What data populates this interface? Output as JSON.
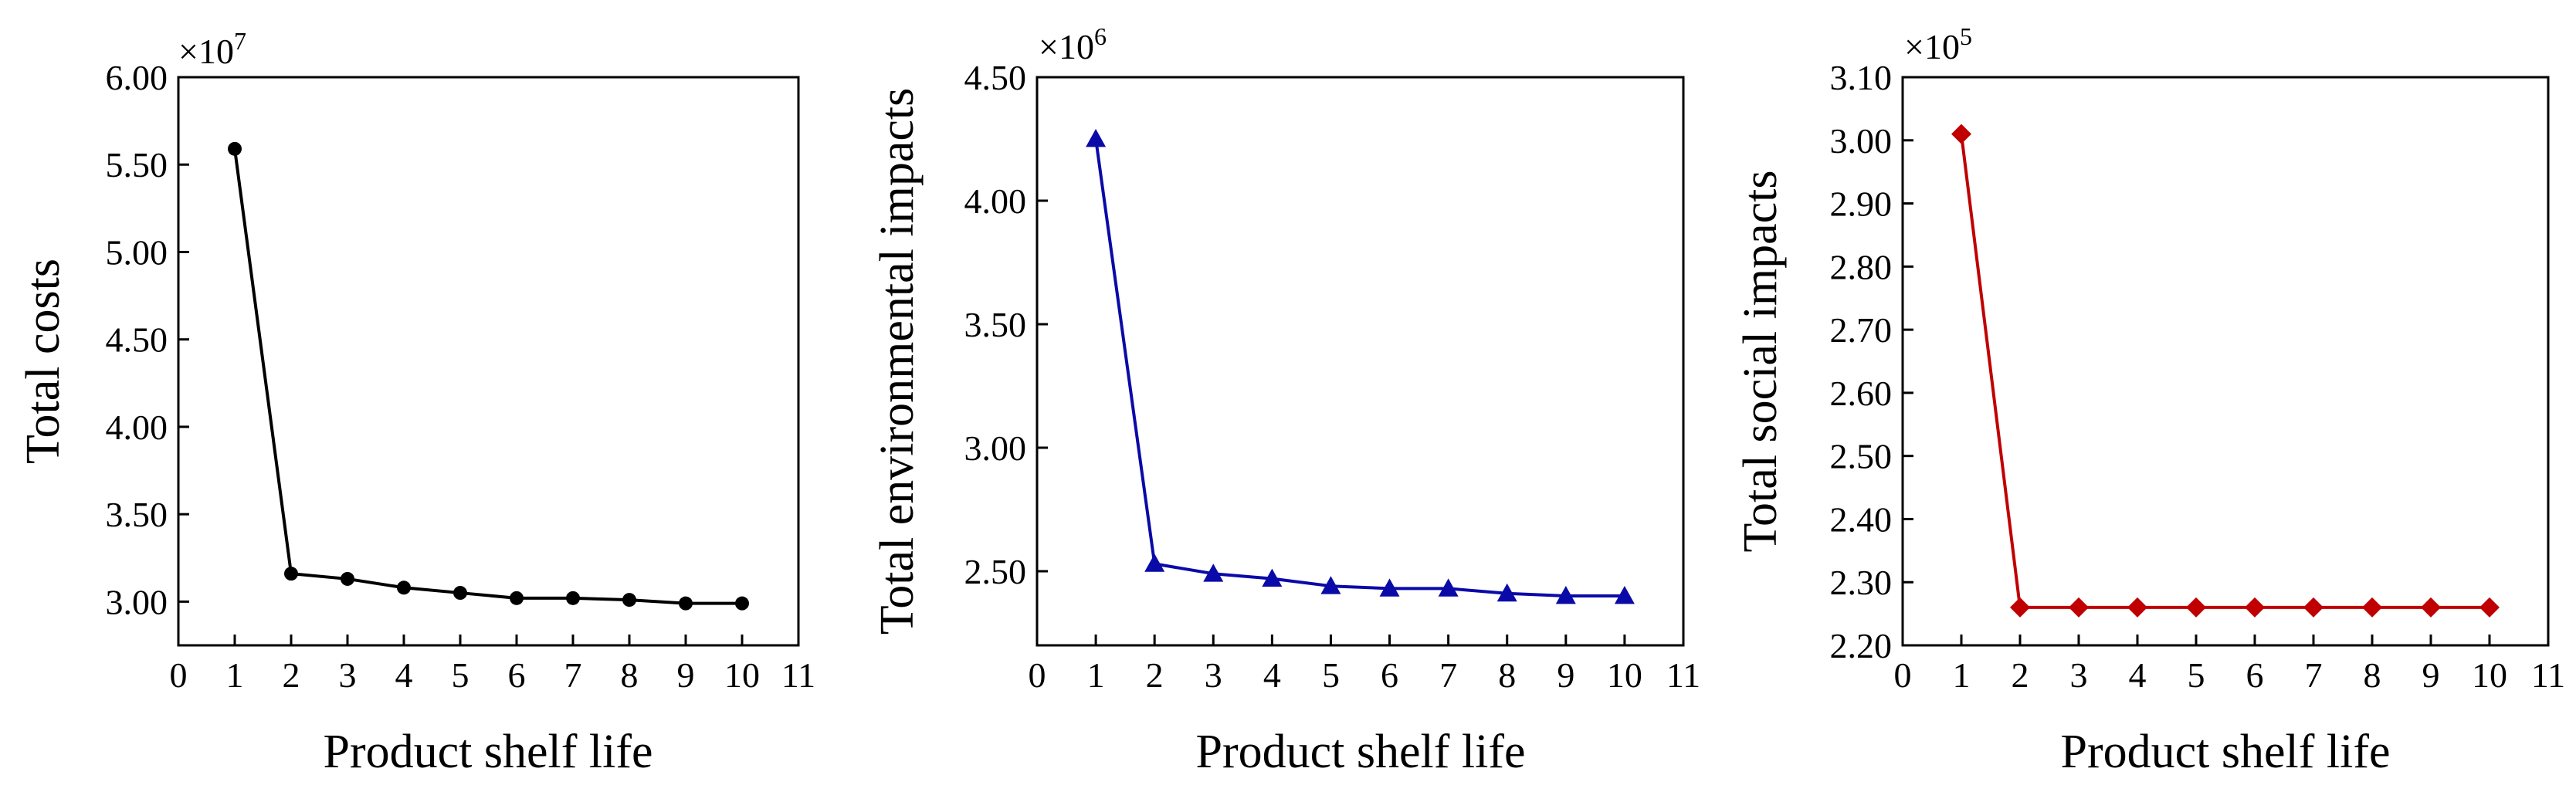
{
  "chart_data": [
    {
      "type": "line",
      "color": "#000000",
      "marker": "circle",
      "xlabel": "Product shelf life",
      "ylabel": "Total costs",
      "multiplier": {
        "base": "×10",
        "exp": "7"
      },
      "xlim": [
        0,
        11
      ],
      "ylim": [
        2.75,
        6.0
      ],
      "xticks": [
        "0",
        "1",
        "2",
        "3",
        "4",
        "5",
        "6",
        "7",
        "8",
        "9",
        "10",
        "11"
      ],
      "yticks": [
        {
          "v": 3.0,
          "label": "3.00"
        },
        {
          "v": 3.5,
          "label": "3.50"
        },
        {
          "v": 4.0,
          "label": "4.00"
        },
        {
          "v": 4.5,
          "label": "4.50"
        },
        {
          "v": 5.0,
          "label": "5.00"
        },
        {
          "v": 5.5,
          "label": "5.50"
        },
        {
          "v": 6.0,
          "label": "6.00"
        }
      ],
      "x": [
        1,
        2,
        3,
        4,
        5,
        6,
        7,
        8,
        9,
        10
      ],
      "values": [
        5.59,
        3.16,
        3.13,
        3.08,
        3.05,
        3.02,
        3.02,
        3.01,
        2.99,
        2.99
      ]
    },
    {
      "type": "line",
      "color": "#0a0aa8",
      "marker": "triangle",
      "xlabel": "Product shelf life",
      "ylabel": "Total environmental impacts",
      "multiplier": {
        "base": "×10",
        "exp": "6"
      },
      "xlim": [
        0,
        11
      ],
      "ylim": [
        2.2,
        4.5
      ],
      "xticks": [
        "0",
        "1",
        "2",
        "3",
        "4",
        "5",
        "6",
        "7",
        "8",
        "9",
        "10",
        "11"
      ],
      "yticks": [
        {
          "v": 2.5,
          "label": "2.50"
        },
        {
          "v": 3.0,
          "label": "3.00"
        },
        {
          "v": 3.5,
          "label": "3.50"
        },
        {
          "v": 4.0,
          "label": "4.00"
        },
        {
          "v": 4.5,
          "label": "4.50"
        }
      ],
      "x": [
        1,
        2,
        3,
        4,
        5,
        6,
        7,
        8,
        9,
        10
      ],
      "values": [
        4.25,
        2.53,
        2.49,
        2.47,
        2.44,
        2.43,
        2.43,
        2.41,
        2.4,
        2.4
      ]
    },
    {
      "type": "line",
      "color": "#c00000",
      "marker": "diamond",
      "xlabel": "Product shelf life",
      "ylabel": "Total social impacts",
      "multiplier": {
        "base": "×10",
        "exp": "5"
      },
      "xlim": [
        0,
        11
      ],
      "ylim": [
        2.2,
        3.1
      ],
      "xticks": [
        "0",
        "1",
        "2",
        "3",
        "4",
        "5",
        "6",
        "7",
        "8",
        "9",
        "10",
        "11"
      ],
      "yticks": [
        {
          "v": 2.2,
          "label": "2.20"
        },
        {
          "v": 2.3,
          "label": "2.30"
        },
        {
          "v": 2.4,
          "label": "2.40"
        },
        {
          "v": 2.5,
          "label": "2.50"
        },
        {
          "v": 2.6,
          "label": "2.60"
        },
        {
          "v": 2.7,
          "label": "2.70"
        },
        {
          "v": 2.8,
          "label": "2.80"
        },
        {
          "v": 2.9,
          "label": "2.90"
        },
        {
          "v": 3.0,
          "label": "3.00"
        },
        {
          "v": 3.1,
          "label": "3.10"
        }
      ],
      "x": [
        1,
        2,
        3,
        4,
        5,
        6,
        7,
        8,
        9,
        10
      ],
      "values": [
        3.01,
        2.26,
        2.26,
        2.26,
        2.26,
        2.26,
        2.26,
        2.26,
        2.26,
        2.26
      ]
    }
  ]
}
